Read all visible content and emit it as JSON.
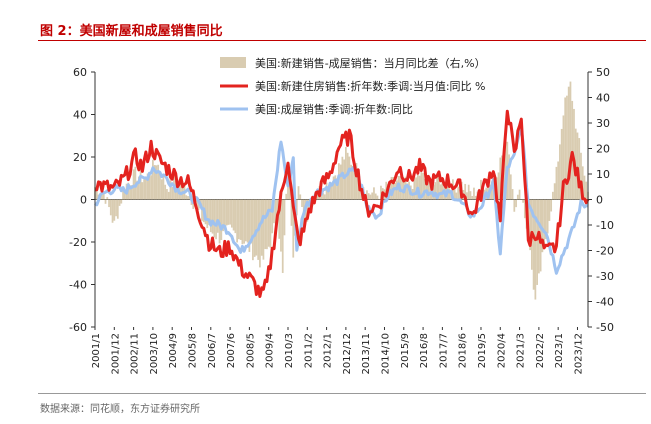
{
  "page": {
    "title": "图 2：美国新屋和成屋销售同比",
    "source": "数据来源：同花顺，东方证券研究所"
  },
  "chart_data": {
    "type": "bar+line",
    "title": "",
    "xlabel": "",
    "ylabel_left": "",
    "ylabel_right": "",
    "ylim_left": [
      -60,
      60
    ],
    "yticks_left": [
      "60",
      "40",
      "20",
      "0",
      "-20",
      "-40",
      "-60"
    ],
    "ylim_right": [
      -50,
      50
    ],
    "yticks_right": [
      "50",
      "40",
      "30",
      "20",
      "10",
      "0",
      "-10",
      "-20",
      "-30",
      "-40",
      "-50"
    ],
    "x_start": "2001-01",
    "x_end": "2024-06",
    "x_tick_labels": [
      "2001/1",
      "2001/12",
      "2002/11",
      "2003/10",
      "2004/9",
      "2005/8",
      "2006/7",
      "2007/6",
      "2008/5",
      "2009/4",
      "2010/3",
      "2011/2",
      "2012/1",
      "2012/12",
      "2013/11",
      "2014/10",
      "2015/9",
      "2016/8",
      "2017/7",
      "2018/6",
      "2019/5",
      "2020/4",
      "2021/3",
      "2022/2",
      "2023/1",
      "2023/12"
    ],
    "legend": [
      "美国:新建销售-成屋销售：当月同比差（右,%）",
      "美国:新建住房销售:折年数:季调:当月值:同比 %",
      "美国:成屋销售:季调:折年数:同比"
    ],
    "legend_position": "top",
    "colors": {
      "bars": "#d9ccb1",
      "new_home": "#e3231f",
      "existing_home": "#9fc2f0"
    },
    "series_anchors": [
      {
        "name": "美国:新建住房销售:折年数:季调:当月值:同比 %",
        "axis": "left",
        "points": [
          [
            "2001-01",
            8
          ],
          [
            "2001-06",
            6
          ],
          [
            "2001-12",
            5
          ],
          [
            "2002-06",
            10
          ],
          [
            "2002-12",
            20
          ],
          [
            "2003-04",
            15
          ],
          [
            "2003-09",
            25
          ],
          [
            "2004-02",
            18
          ],
          [
            "2004-06",
            15
          ],
          [
            "2004-12",
            10
          ],
          [
            "2005-06",
            8
          ],
          [
            "2005-09",
            2
          ],
          [
            "2006-01",
            -8
          ],
          [
            "2006-06",
            -20
          ],
          [
            "2006-12",
            -25
          ],
          [
            "2007-06",
            -22
          ],
          [
            "2007-12",
            -32
          ],
          [
            "2008-06",
            -38
          ],
          [
            "2008-12",
            -45
          ],
          [
            "2009-03",
            -40
          ],
          [
            "2009-06",
            -25
          ],
          [
            "2009-09",
            -8
          ],
          [
            "2009-12",
            5
          ],
          [
            "2010-03",
            20
          ],
          [
            "2010-06",
            -5
          ],
          [
            "2010-09",
            -20
          ],
          [
            "2010-12",
            -15
          ],
          [
            "2011-03",
            -5
          ],
          [
            "2011-09",
            5
          ],
          [
            "2012-03",
            12
          ],
          [
            "2012-08",
            25
          ],
          [
            "2013-02",
            30
          ],
          [
            "2013-06",
            15
          ],
          [
            "2013-12",
            -5
          ],
          [
            "2014-06",
            -3
          ],
          [
            "2014-12",
            5
          ],
          [
            "2015-06",
            15
          ],
          [
            "2015-12",
            10
          ],
          [
            "2016-06",
            15
          ],
          [
            "2016-12",
            8
          ],
          [
            "2017-06",
            10
          ],
          [
            "2017-12",
            8
          ],
          [
            "2018-06",
            5
          ],
          [
            "2018-12",
            -8
          ],
          [
            "2019-06",
            5
          ],
          [
            "2019-12",
            15
          ],
          [
            "2020-04",
            -10
          ],
          [
            "2020-08",
            45
          ],
          [
            "2020-12",
            20
          ],
          [
            "2021-04",
            40
          ],
          [
            "2021-08",
            -20
          ],
          [
            "2021-12",
            -15
          ],
          [
            "2022-06",
            -25
          ],
          [
            "2022-12",
            -22
          ],
          [
            "2023-04",
            5
          ],
          [
            "2023-09",
            20
          ],
          [
            "2024-02",
            5
          ],
          [
            "2024-06",
            0
          ]
        ]
      },
      {
        "name": "美国:成屋销售:季调:折年数:同比",
        "axis": "left",
        "points": [
          [
            "2001-01",
            -2
          ],
          [
            "2001-06",
            3
          ],
          [
            "2001-12",
            5
          ],
          [
            "2002-06",
            4
          ],
          [
            "2002-12",
            8
          ],
          [
            "2003-06",
            10
          ],
          [
            "2003-10",
            15
          ],
          [
            "2004-06",
            10
          ],
          [
            "2004-12",
            5
          ],
          [
            "2005-06",
            3
          ],
          [
            "2005-12",
            -2
          ],
          [
            "2006-06",
            -10
          ],
          [
            "2006-12",
            -12
          ],
          [
            "2007-06",
            -15
          ],
          [
            "2007-12",
            -25
          ],
          [
            "2008-06",
            -18
          ],
          [
            "2008-12",
            -10
          ],
          [
            "2009-06",
            -5
          ],
          [
            "2009-11",
            28
          ],
          [
            "2010-03",
            5
          ],
          [
            "2010-06",
            20
          ],
          [
            "2010-08",
            -25
          ],
          [
            "2010-12",
            -5
          ],
          [
            "2011-06",
            3
          ],
          [
            "2011-12",
            5
          ],
          [
            "2012-06",
            8
          ],
          [
            "2012-12",
            12
          ],
          [
            "2013-06",
            14
          ],
          [
            "2013-12",
            -3
          ],
          [
            "2014-06",
            -8
          ],
          [
            "2014-12",
            2
          ],
          [
            "2015-06",
            6
          ],
          [
            "2015-12",
            5
          ],
          [
            "2016-06",
            3
          ],
          [
            "2016-12",
            4
          ],
          [
            "2017-06",
            2
          ],
          [
            "2017-12",
            3
          ],
          [
            "2018-06",
            -2
          ],
          [
            "2018-12",
            -8
          ],
          [
            "2019-06",
            -2
          ],
          [
            "2019-12",
            8
          ],
          [
            "2020-04",
            -25
          ],
          [
            "2020-08",
            15
          ],
          [
            "2020-12",
            20
          ],
          [
            "2021-04",
            35
          ],
          [
            "2021-08",
            -2
          ],
          [
            "2021-12",
            -8
          ],
          [
            "2022-06",
            -15
          ],
          [
            "2022-12",
            -33
          ],
          [
            "2023-04",
            -25
          ],
          [
            "2023-09",
            -15
          ],
          [
            "2024-02",
            -2
          ],
          [
            "2024-06",
            -3
          ]
        ]
      },
      {
        "name": "美国:新建销售-成屋销售：当月同比差（右,%）",
        "axis": "right",
        "points": [
          [
            "2001-01",
            5
          ],
          [
            "2001-06",
            3
          ],
          [
            "2001-12",
            -10
          ],
          [
            "2002-06",
            5
          ],
          [
            "2002-12",
            10
          ],
          [
            "2003-06",
            8
          ],
          [
            "2003-12",
            15
          ],
          [
            "2004-06",
            5
          ],
          [
            "2004-12",
            8
          ],
          [
            "2005-06",
            3
          ],
          [
            "2005-12",
            -5
          ],
          [
            "2006-06",
            -12
          ],
          [
            "2006-12",
            -15
          ],
          [
            "2007-06",
            -12
          ],
          [
            "2007-12",
            -15
          ],
          [
            "2008-06",
            -20
          ],
          [
            "2008-12",
            -25
          ],
          [
            "2009-06",
            -15
          ],
          [
            "2009-09",
            -5
          ],
          [
            "2009-12",
            -30
          ],
          [
            "2010-03",
            15
          ],
          [
            "2010-06",
            -20
          ],
          [
            "2010-09",
            5
          ],
          [
            "2010-12",
            -10
          ],
          [
            "2011-06",
            2
          ],
          [
            "2011-12",
            5
          ],
          [
            "2012-06",
            10
          ],
          [
            "2012-12",
            18
          ],
          [
            "2013-06",
            12
          ],
          [
            "2013-12",
            3
          ],
          [
            "2014-06",
            2
          ],
          [
            "2014-12",
            5
          ],
          [
            "2015-06",
            8
          ],
          [
            "2015-12",
            5
          ],
          [
            "2016-06",
            10
          ],
          [
            "2016-12",
            6
          ],
          [
            "2017-06",
            8
          ],
          [
            "2017-12",
            5
          ],
          [
            "2018-06",
            6
          ],
          [
            "2018-12",
            2
          ],
          [
            "2019-06",
            6
          ],
          [
            "2019-12",
            8
          ],
          [
            "2020-04",
            15
          ],
          [
            "2020-08",
            25
          ],
          [
            "2020-12",
            -2
          ],
          [
            "2021-04",
            3
          ],
          [
            "2021-08",
            -15
          ],
          [
            "2021-12",
            -40
          ],
          [
            "2022-06",
            -15
          ],
          [
            "2022-12",
            10
          ],
          [
            "2023-04",
            35
          ],
          [
            "2023-08",
            45
          ],
          [
            "2023-12",
            25
          ],
          [
            "2024-06",
            3
          ]
        ]
      }
    ]
  }
}
